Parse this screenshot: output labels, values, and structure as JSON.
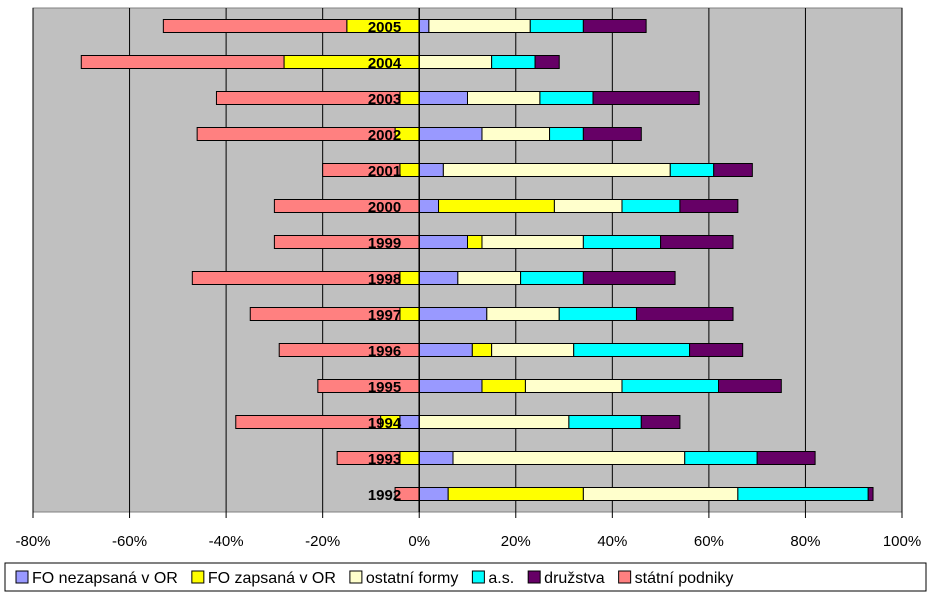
{
  "chart_data": {
    "type": "bar",
    "orientation": "horizontal",
    "stacked": true,
    "categories": [
      "2005",
      "2004",
      "2003",
      "2002",
      "2001",
      "2000",
      "1999",
      "1998",
      "1997",
      "1996",
      "1995",
      "1994",
      "1993",
      "1992"
    ],
    "series": [
      {
        "name": "FO nezapsaná v OR",
        "color": "#9999ff",
        "values": [
          2,
          0,
          10,
          13,
          5,
          4,
          10,
          8,
          14,
          11,
          13,
          -4,
          7,
          6
        ]
      },
      {
        "name": "FO zapsaná v OR",
        "color": "#ffff00",
        "values": [
          -15,
          -28,
          -4,
          -5,
          -4,
          24,
          3,
          -4,
          -4,
          4,
          9,
          -4,
          -4,
          28
        ]
      },
      {
        "name": "ostatní formy",
        "color": "#ffffcc",
        "values": [
          21,
          15,
          15,
          14,
          47,
          14,
          21,
          13,
          15,
          17,
          20,
          31,
          48,
          32
        ]
      },
      {
        "name": "a.s.",
        "color": "#00ffff",
        "values": [
          11,
          9,
          11,
          7,
          9,
          12,
          16,
          13,
          16,
          24,
          20,
          15,
          15,
          27
        ]
      },
      {
        "name": "družstva",
        "color": "#660066",
        "values": [
          13,
          5,
          22,
          12,
          8,
          12,
          15,
          19,
          20,
          11,
          13,
          8,
          12,
          1
        ]
      },
      {
        "name": "státní podniky",
        "color": "#ff8080",
        "values": [
          -38,
          -42,
          -38,
          -41,
          -16,
          -30,
          -30,
          -43,
          -31,
          -29,
          -21,
          -30,
          -13,
          -5
        ]
      }
    ],
    "x_ticks": [
      "-80%",
      "-60%",
      "-40%",
      "-20%",
      "0%",
      "20%",
      "40%",
      "60%",
      "80%",
      "100%"
    ],
    "xlim": [
      -80,
      100
    ],
    "grid": "vertical",
    "legend_position": "bottom",
    "plot_background": "#c0c0c0"
  }
}
